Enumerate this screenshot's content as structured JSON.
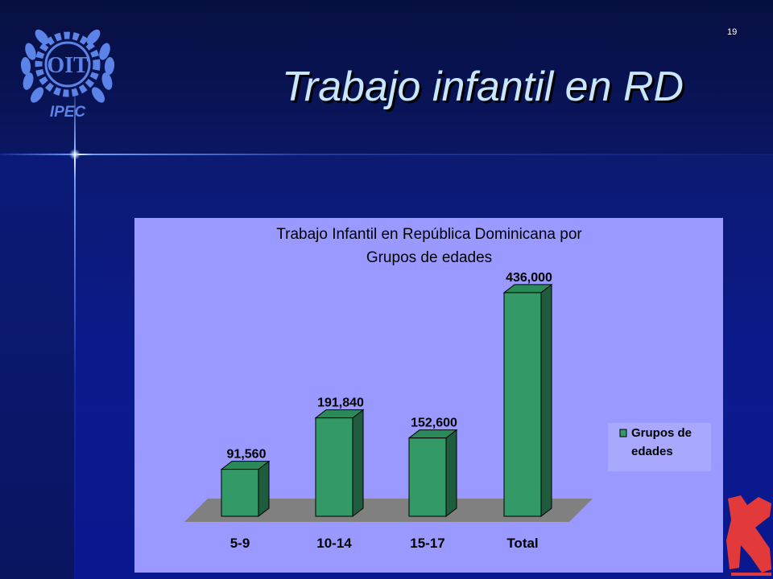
{
  "slide": {
    "title": "Trabajo infantil en RD",
    "page_number": "19",
    "logo_text": "OIT",
    "logo_subtext": "IPEC",
    "colors": {
      "title": "#c8e6ff",
      "chart_background": "#9999ff",
      "bar_face": "#339966",
      "bar_side": "#1f5c3e",
      "bar_top": "#2b8a5a",
      "floor": "#808080"
    }
  },
  "chart_data": {
    "type": "bar",
    "title_lines": [
      "Trabajo Infantil en República Dominicana por",
      "Grupos de edades"
    ],
    "categories": [
      "5-9",
      "10-14",
      "15-17",
      "Total"
    ],
    "series": [
      {
        "name": "Grupos de edades",
        "values": [
          91560,
          191840,
          152600,
          436000
        ],
        "labels": [
          "91,560",
          "191,840",
          "152,600",
          "436,000"
        ]
      }
    ],
    "legend_lines": [
      "Grupos de",
      "edades"
    ],
    "ylim": [
      0,
      450000
    ],
    "grid": false,
    "legend_position": "right"
  }
}
